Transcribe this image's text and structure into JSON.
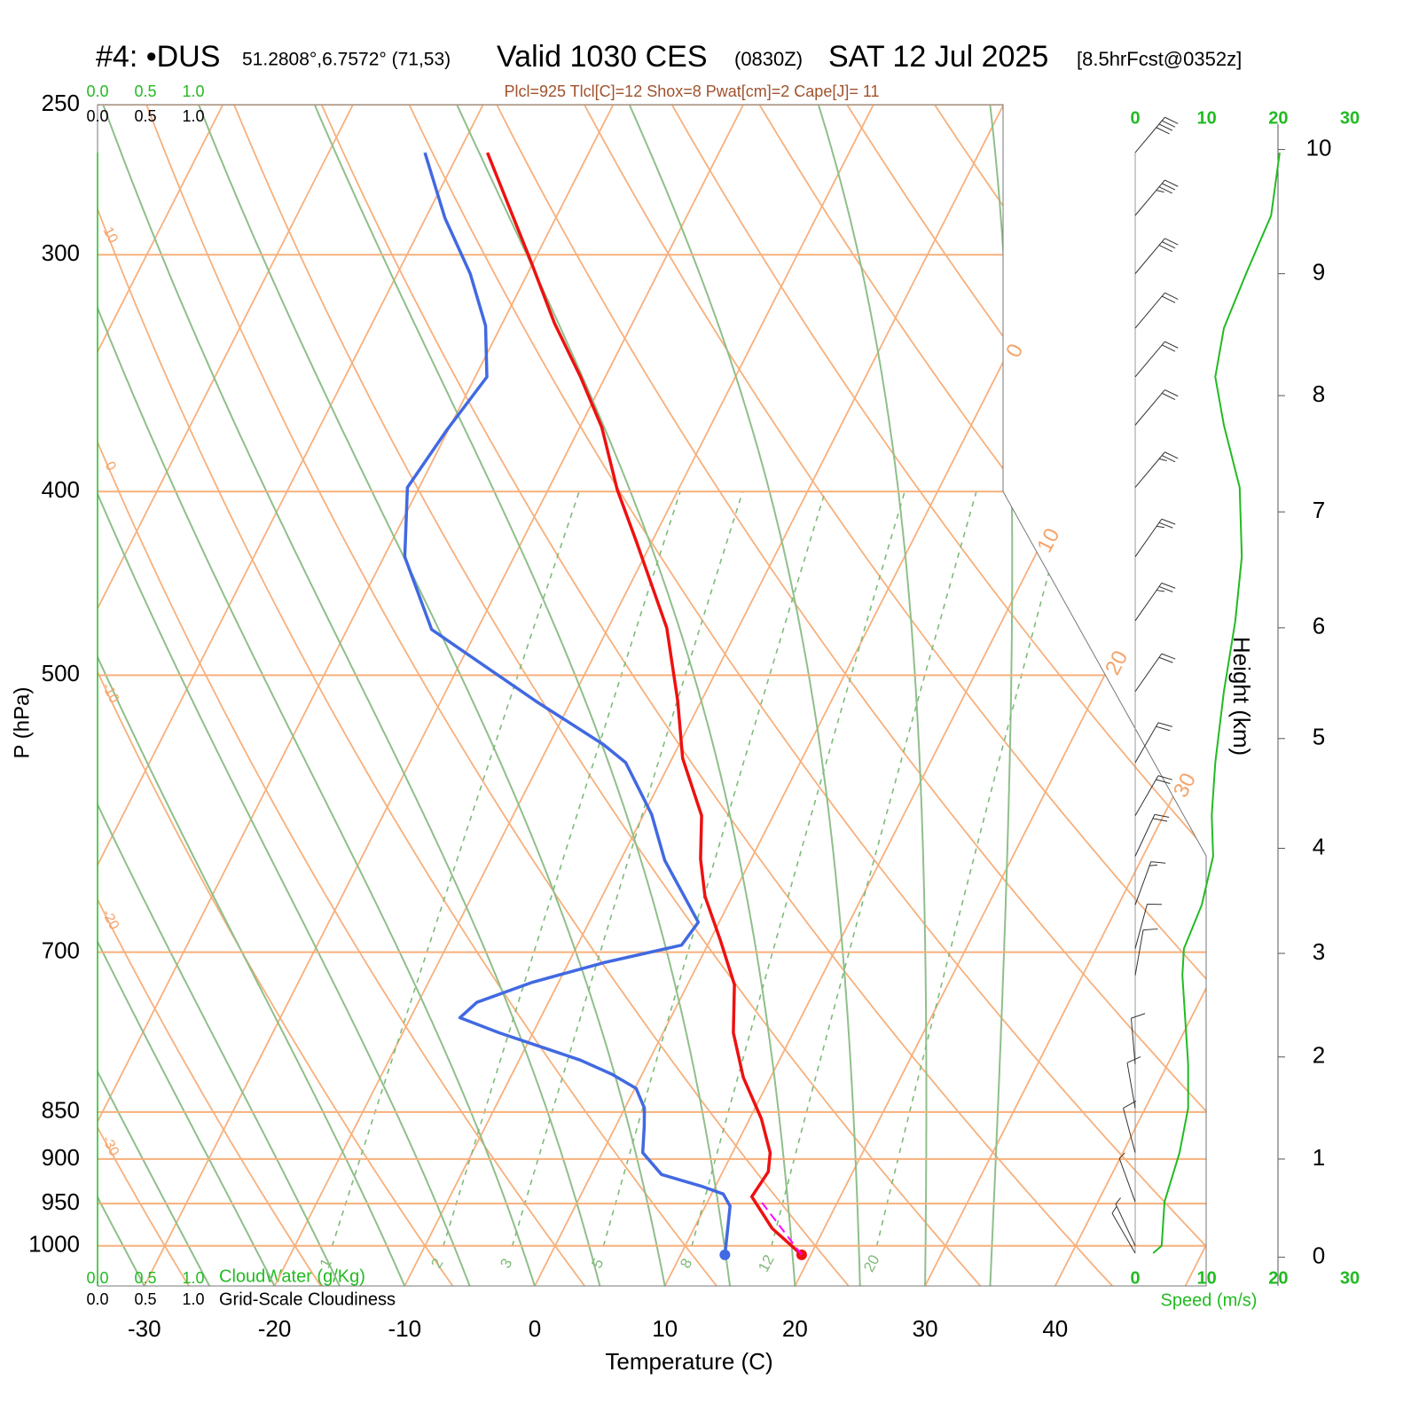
{
  "chart_data": {
    "type": "skewt",
    "station": "#4: •DUS",
    "location": "51.2808°,6.7572° (71,53)",
    "valid": "Valid 1030 CES",
    "valid_utc": "(0830Z)",
    "date": "SAT 12 Jul 2025",
    "forecast": "[8.5hrFcst@0352z]",
    "subtitle": "Plcl=925 Tlcl[C]=12 Shox=8 Pwat[cm]=2 Cape[J]= 11",
    "ylabel": "P (hPa)",
    "xlabel": "Temperature (C)",
    "ylim": [
      1050,
      250
    ],
    "yticks": [
      250,
      300,
      400,
      500,
      700,
      850,
      900,
      950,
      1000
    ],
    "xlim": [
      -33.6,
      51.6
    ],
    "xticks": [
      -30,
      -20,
      -10,
      0,
      10,
      20,
      30,
      40
    ],
    "isotherm_labels": [
      0,
      10,
      20,
      30
    ],
    "dry_adiabat_labels": [
      10,
      0,
      -10,
      -20,
      -30
    ],
    "mixing_ratio_labels": [
      1,
      2,
      3,
      5,
      8,
      12,
      20
    ],
    "series": [
      {
        "color": "#ee1111",
        "surface_marker": true,
        "pressure": [
          1011,
          979,
          942,
          914,
          893,
          857,
          815,
          772,
          728,
          690,
          654,
          625,
          593,
          553,
          516,
          472,
          425,
          399,
          370,
          348,
          326,
          302,
          265
        ],
        "temperature": [
          19.3,
          16.0,
          13.2,
          13.5,
          12.9,
          10.9,
          7.9,
          5.4,
          3.6,
          0.8,
          -2.1,
          -3.9,
          -5.5,
          -9.2,
          -11.8,
          -15.5,
          -21.2,
          -24.7,
          -28.3,
          -31.9,
          -36.0,
          -40.3,
          -47.8
        ]
      },
      {
        "color": "#4169e1",
        "surface_marker": true,
        "pressure": [
          1011,
          953,
          939,
          930,
          917,
          893,
          865,
          846,
          826,
          812,
          798,
          772,
          758,
          744,
          726,
          709,
          694,
          675,
          626,
          592,
          556,
          544,
          516,
          473,
          433,
          398,
          371,
          348,
          327,
          307,
          287,
          265
        ],
        "temperature": [
          13.4,
          11.9,
          10.9,
          8.9,
          5.4,
          3.1,
          2.2,
          1.5,
          0.1,
          -2.3,
          -5.3,
          -12.6,
          -16.2,
          -15.5,
          -12.0,
          -7.3,
          -2.0,
          -1.6,
          -6.6,
          -9.4,
          -13.4,
          -15.8,
          -22.7,
          -33.5,
          -38.4,
          -40.9,
          -40.1,
          -39.1,
          -41.2,
          -44.4,
          -48.5,
          -52.6
        ]
      },
      {
        "color": "#ff00ff",
        "dashed": true,
        "surface_marker": false,
        "pressure": [
          1011,
          944
        ],
        "temperature": [
          19.3,
          13.8
        ]
      }
    ],
    "wind": {
      "color": "#22bb22",
      "xlabel": "Speed (m/s)",
      "xlim": [
        0,
        30
      ],
      "xticks": [
        0,
        10,
        20,
        30
      ],
      "pressure": [
        1009,
        1000,
        948,
        893,
        846,
        802,
        720,
        697,
        661,
        623,
        593,
        556,
        510,
        468,
        433,
        398,
        369,
        348,
        328,
        307,
        286,
        265
      ],
      "speed": [
        2.5,
        3.7,
        4.1,
        6.2,
        7.4,
        7.4,
        6.6,
        6.8,
        9.3,
        10.9,
        10.7,
        11.2,
        12.4,
        14.0,
        14.9,
        14.6,
        12.4,
        11.2,
        12.4,
        15.5,
        19.0,
        20.2
      ],
      "direction": [
        330,
        335,
        340,
        345,
        350,
        355,
        10,
        15,
        20,
        25,
        30,
        30,
        35,
        35,
        35,
        40,
        40,
        40,
        40,
        40,
        40,
        40
      ],
      "height_label": "Height (km)",
      "height_ticks": [
        {
          "value": 1014,
          "label": "0"
        },
        {
          "value": 900,
          "label": "1"
        },
        {
          "value": 795,
          "label": "2"
        },
        {
          "value": 701,
          "label": "3"
        },
        {
          "value": 617,
          "label": "4"
        },
        {
          "value": 540,
          "label": "5"
        },
        {
          "value": 472,
          "label": "6"
        },
        {
          "value": 410,
          "label": "7"
        },
        {
          "value": 356,
          "label": "8"
        },
        {
          "value": 307,
          "label": "9"
        },
        {
          "value": 264,
          "label": "10"
        }
      ]
    },
    "cloud": {
      "water_color": "#22bb22",
      "water_label": "CloudWater (g/Kg)",
      "cover_label": "Grid-Scale Cloudiness",
      "xlim": [
        0,
        1
      ],
      "xticks": [
        {
          "value": 0,
          "label": "0.0"
        },
        {
          "value": 0.5,
          "label": "0.5"
        },
        {
          "value": 1,
          "label": "1.0"
        }
      ]
    }
  }
}
